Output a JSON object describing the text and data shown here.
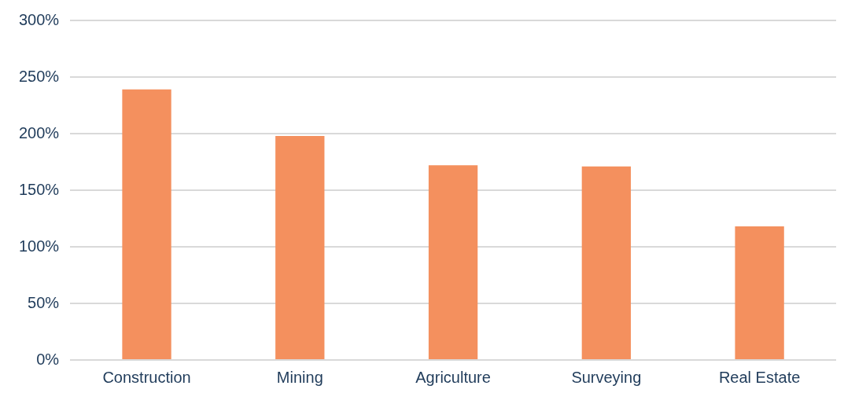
{
  "chart_data": {
    "type": "bar",
    "categories": [
      "Construction",
      "Mining",
      "Agriculture",
      "Surveying",
      "Real Estate"
    ],
    "values": [
      239,
      198,
      172,
      171,
      118
    ],
    "color": "#f4905e",
    "ylim": [
      0,
      300
    ],
    "yticks": [
      {
        "value": 0,
        "label": "0%"
      },
      {
        "value": 50,
        "label": "50%"
      },
      {
        "value": 100,
        "label": "100%"
      },
      {
        "value": 150,
        "label": "150%"
      },
      {
        "value": 200,
        "label": "200%"
      },
      {
        "value": 250,
        "label": "250%"
      },
      {
        "value": 300,
        "label": "300%"
      }
    ],
    "grid": "y"
  }
}
